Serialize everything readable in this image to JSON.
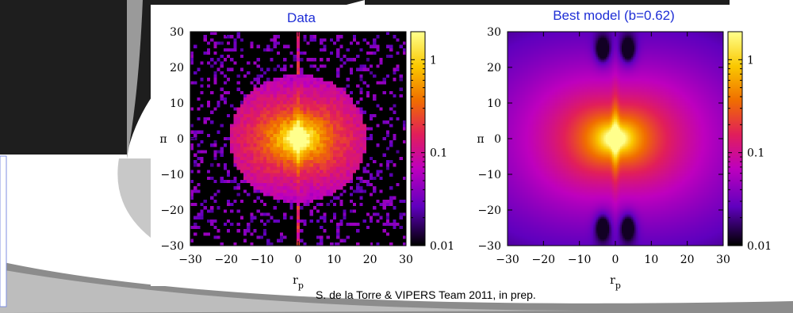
{
  "chart_data": [
    {
      "type": "heatmap",
      "title": "Data",
      "xlabel": "r_p",
      "ylabel": "π",
      "xlim": [
        -30,
        30
      ],
      "ylim": [
        -30,
        30
      ],
      "x_ticks": [
        "−30",
        "−20",
        "−10",
        "0",
        "10",
        "20",
        "30"
      ],
      "y_ticks": [
        "30",
        "20",
        "10",
        "0",
        "−10",
        "−20",
        "−30"
      ],
      "colorbar": {
        "scale": "log",
        "range": [
          0.01,
          2
        ],
        "tick_labels": [
          "1",
          "0.1",
          "0.01"
        ]
      },
      "description_values": {
        "peak_region": "center (r_p≈0, π≈0)",
        "noise_beyond_radius": 22
      }
    },
    {
      "type": "heatmap",
      "title": "Best model (b=0.62)",
      "xlabel": "r_p",
      "ylabel": "π",
      "xlim": [
        -30,
        30
      ],
      "ylim": [
        -30,
        30
      ],
      "x_ticks": [
        "−30",
        "−20",
        "−10",
        "0",
        "10",
        "20",
        "30"
      ],
      "y_ticks": [
        "30",
        "20",
        "10",
        "0",
        "−10",
        "−20",
        "−30"
      ],
      "colorbar": {
        "scale": "log",
        "range": [
          0.01,
          2
        ],
        "tick_labels": [
          "1",
          "0.1",
          "0.01"
        ]
      },
      "model_param_b": 0.62
    }
  ],
  "credit": "S. de la Torre & VIPERS Team 2011, in prep.",
  "colors": {
    "title_blue": "#1f2fd6",
    "colormap": [
      "#000000",
      "#6a00c8",
      "#c000c8",
      "#e02060",
      "#f07000",
      "#f8c000",
      "#ffff80"
    ]
  }
}
